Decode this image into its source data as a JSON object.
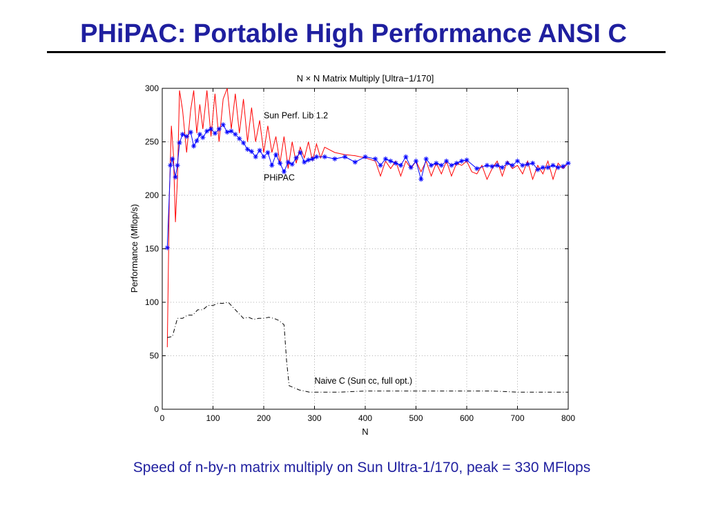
{
  "slide": {
    "title": "PHiPAC: Portable High Performance ANSI C",
    "caption": "Speed of n-by-n matrix multiply on Sun Ultra-1/170, peak = 330 MFlops"
  },
  "chart_data": {
    "type": "line",
    "title": "N × N Matrix Multiply [Ultra−1/170]",
    "xlabel": "N",
    "ylabel": "Performance (Mflop/s)",
    "xlim": [
      0,
      800
    ],
    "ylim": [
      0,
      300
    ],
    "xticks": [
      0,
      100,
      200,
      300,
      400,
      500,
      600,
      700,
      800
    ],
    "yticks": [
      0,
      50,
      100,
      150,
      200,
      250,
      300
    ],
    "grid": true,
    "colors": {
      "sun_perf_lib": "#ff0000",
      "phipac": "#0000ff",
      "naive_c": "#000000"
    },
    "annotations": [
      {
        "text": "Sun Perf. Lib 1.2",
        "x": 200,
        "y": 272
      },
      {
        "text": "PHiPAC",
        "x": 200,
        "y": 214
      },
      {
        "text": "Naive C (Sun cc, full opt.)",
        "x": 300,
        "y": 24
      }
    ],
    "series": [
      {
        "name": "Sun Perf. Lib 1.2",
        "style": "solid",
        "marker": "none",
        "x": [
          10,
          14,
          18,
          22,
          26,
          30,
          34,
          40,
          48,
          56,
          62,
          68,
          74,
          80,
          88,
          96,
          104,
          112,
          120,
          128,
          136,
          144,
          152,
          160,
          168,
          176,
          184,
          192,
          200,
          208,
          216,
          224,
          232,
          240,
          248,
          256,
          264,
          272,
          280,
          288,
          296,
          304,
          312,
          320,
          340,
          360,
          380,
          400,
          420,
          430,
          440,
          450,
          460,
          470,
          480,
          490,
          500,
          510,
          520,
          530,
          540,
          550,
          560,
          570,
          580,
          590,
          600,
          610,
          620,
          630,
          640,
          650,
          660,
          670,
          680,
          690,
          700,
          710,
          720,
          730,
          740,
          750,
          760,
          770,
          780,
          790,
          800
        ],
        "values": [
          58,
          200,
          265,
          238,
          175,
          215,
          298,
          280,
          240,
          280,
          298,
          258,
          285,
          262,
          298,
          255,
          295,
          250,
          290,
          300,
          262,
          295,
          258,
          290,
          250,
          282,
          250,
          270,
          240,
          265,
          240,
          255,
          230,
          255,
          225,
          250,
          230,
          245,
          235,
          250,
          232,
          248,
          235,
          245,
          240,
          238,
          237,
          235,
          232,
          218,
          232,
          225,
          232,
          218,
          232,
          225,
          232,
          222,
          232,
          218,
          230,
          220,
          232,
          218,
          230,
          228,
          232,
          222,
          220,
          228,
          215,
          225,
          232,
          218,
          232,
          225,
          228,
          220,
          232,
          215,
          228,
          220,
          232,
          215,
          230,
          225,
          230
        ]
      },
      {
        "name": "PHiPAC",
        "style": "solid",
        "marker": "asterisk",
        "x": [
          10,
          16,
          20,
          26,
          30,
          34,
          40,
          48,
          56,
          62,
          68,
          74,
          80,
          88,
          96,
          104,
          112,
          120,
          128,
          136,
          144,
          152,
          160,
          168,
          176,
          184,
          192,
          200,
          208,
          216,
          224,
          232,
          240,
          248,
          256,
          264,
          272,
          280,
          288,
          296,
          304,
          320,
          340,
          360,
          380,
          400,
          420,
          430,
          440,
          450,
          460,
          470,
          480,
          490,
          500,
          510,
          520,
          530,
          540,
          550,
          560,
          570,
          580,
          590,
          600,
          620,
          640,
          650,
          660,
          670,
          680,
          690,
          700,
          710,
          720,
          730,
          740,
          750,
          760,
          770,
          780,
          790,
          800
        ],
        "values": [
          151,
          228,
          234,
          217,
          228,
          249,
          257,
          255,
          259,
          246,
          251,
          257,
          254,
          260,
          262,
          258,
          262,
          266,
          259,
          260,
          257,
          253,
          249,
          243,
          241,
          236,
          242,
          236,
          240,
          228,
          238,
          230,
          222,
          231,
          229,
          235,
          240,
          231,
          233,
          234,
          236,
          236,
          234,
          236,
          231,
          236,
          234,
          228,
          234,
          232,
          230,
          228,
          236,
          226,
          232,
          215,
          234,
          228,
          230,
          228,
          232,
          228,
          230,
          232,
          233,
          225,
          228,
          227,
          228,
          226,
          230,
          228,
          232,
          228,
          229,
          230,
          224,
          226,
          226,
          228,
          226,
          227,
          230
        ]
      },
      {
        "name": "Naive C (Sun cc, full opt.)",
        "style": "dash-dot",
        "marker": "none",
        "x": [
          10,
          20,
          30,
          40,
          50,
          60,
          70,
          80,
          90,
          100,
          110,
          120,
          130,
          140,
          150,
          160,
          170,
          180,
          190,
          200,
          210,
          220,
          230,
          240,
          245,
          250,
          260,
          270,
          280,
          290,
          300,
          350,
          400,
          450,
          500,
          550,
          600,
          650,
          700,
          750,
          800
        ],
        "values": [
          67,
          68,
          85,
          85,
          88,
          88,
          93,
          93,
          97,
          97,
          99,
          99,
          100,
          95,
          90,
          85,
          86,
          84,
          85,
          85,
          86,
          85,
          83,
          79,
          45,
          22,
          20,
          18,
          17,
          16,
          16,
          16,
          17,
          17,
          17,
          17,
          17,
          17,
          16,
          16,
          16
        ]
      }
    ]
  }
}
